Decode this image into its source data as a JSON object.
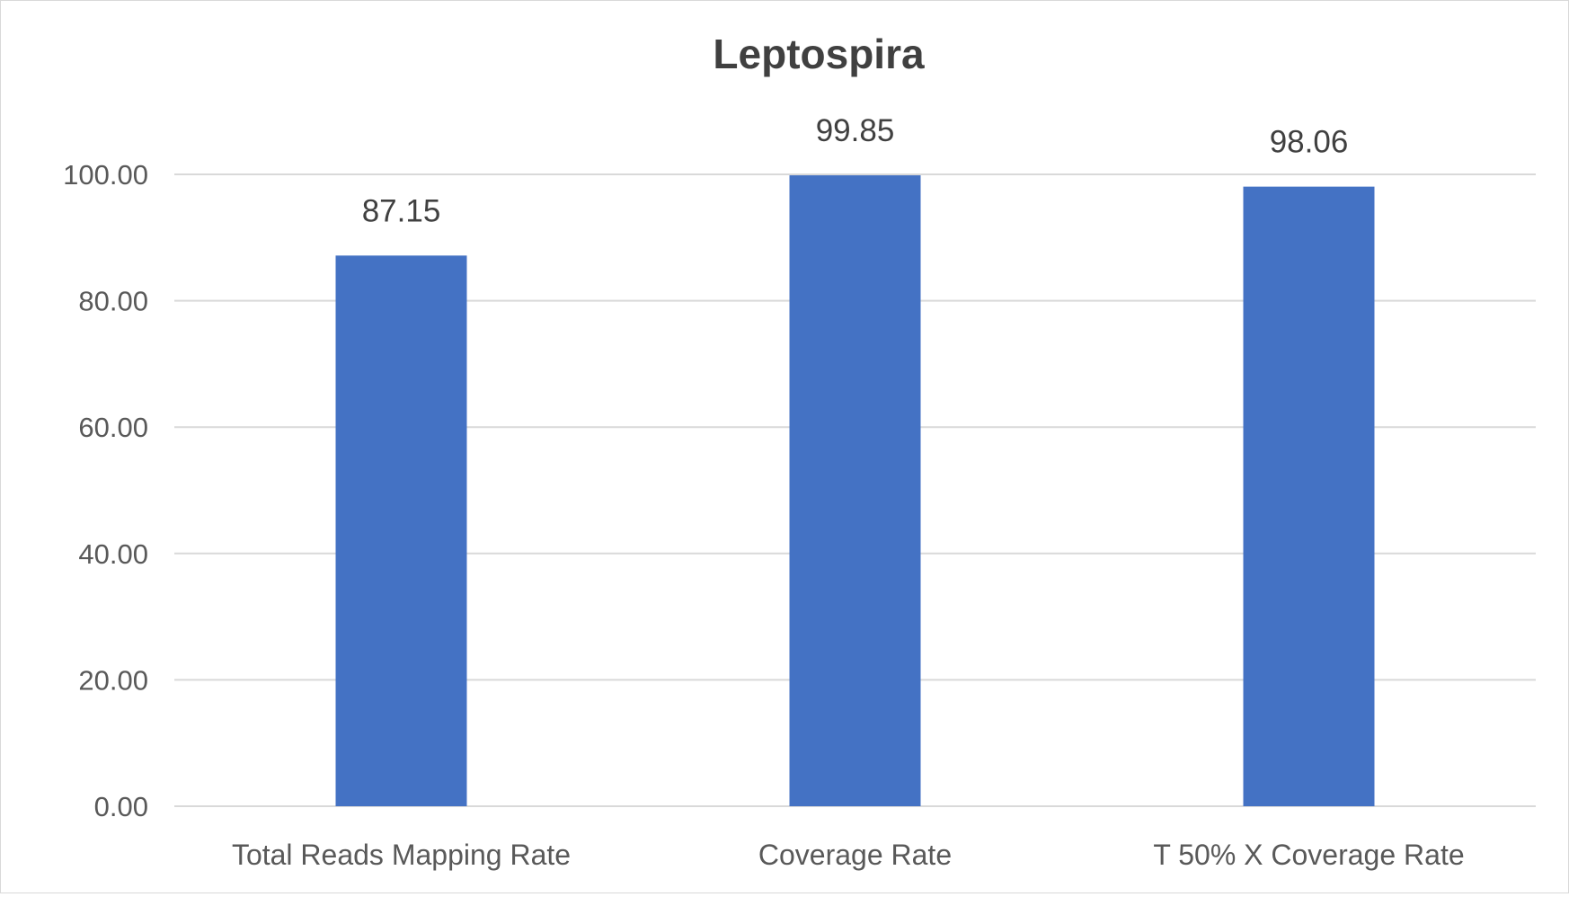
{
  "chart_data": {
    "type": "bar",
    "title": "Leptospira",
    "categories": [
      "Total Reads Mapping Rate",
      "Coverage Rate",
      "T 50% X Coverage Rate"
    ],
    "values": [
      87.15,
      99.85,
      98.06
    ],
    "value_labels": [
      "87.15",
      "99.85",
      "98.06"
    ],
    "xlabel": "",
    "ylabel": "",
    "ylim": [
      0,
      100
    ],
    "yticks": [
      "0.00",
      "20.00",
      "40.00",
      "60.00",
      "80.00",
      "100.00"
    ],
    "grid": true,
    "legend": "none",
    "bar_color": "#4472C4"
  }
}
